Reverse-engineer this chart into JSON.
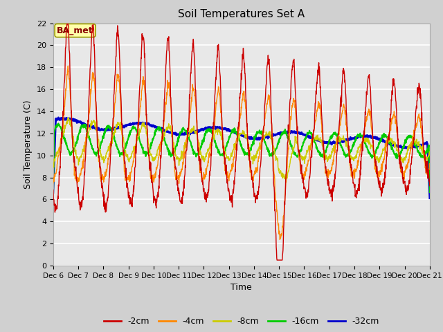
{
  "title": "Soil Temperatures Set A",
  "xlabel": "Time",
  "ylabel": "Soil Temperature (C)",
  "ylim": [
    0,
    22
  ],
  "yticks": [
    0,
    2,
    4,
    6,
    8,
    10,
    12,
    14,
    16,
    18,
    20,
    22
  ],
  "xtick_labels": [
    "Dec 6",
    "Dec 7",
    "Dec 8",
    "Dec 9",
    "Dec 10",
    "Dec 11",
    "Dec 12",
    "Dec 13",
    "Dec 14",
    "Dec 15",
    "Dec 16",
    "Dec 17",
    "Dec 18",
    "Dec 19",
    "Dec 20",
    "Dec 21"
  ],
  "legend_labels": [
    "-2cm",
    "-4cm",
    "-8cm",
    "-16cm",
    "-32cm"
  ],
  "legend_colors": [
    "#cc0000",
    "#ff8800",
    "#cccc00",
    "#00cc00",
    "#0000cc"
  ],
  "label_color": "#880000",
  "annotation_text": "BA_met",
  "annotation_bg": "#ffffaa",
  "annotation_border": "#999900",
  "fig_bg": "#d0d0d0",
  "plot_bg": "#e8e8e8",
  "grid_color": "#ffffff",
  "line_widths": [
    1.0,
    1.0,
    1.0,
    1.5,
    2.0
  ]
}
